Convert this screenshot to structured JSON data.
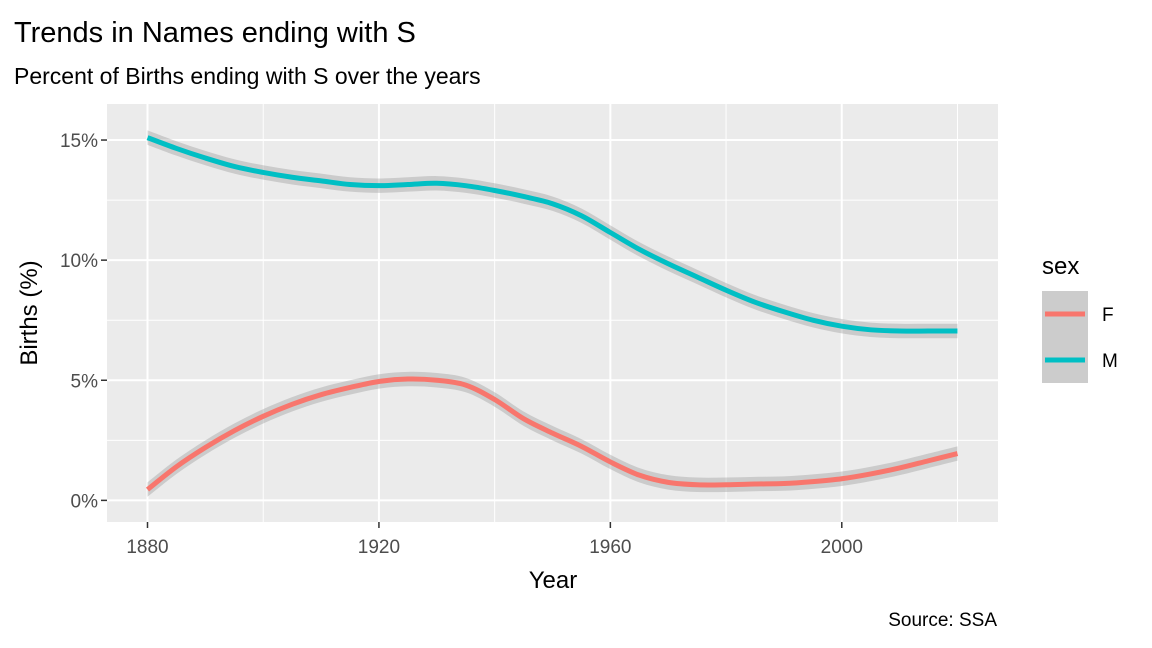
{
  "chart_data": {
    "type": "line",
    "title": "Trends in Names ending with S",
    "subtitle": "Percent of Births ending with S over the years",
    "xlabel": "Year",
    "ylabel": "Births (%)",
    "caption": "Source: SSA",
    "xlim": [
      1873,
      2027
    ],
    "ylim": [
      -0.009,
      0.165
    ],
    "x_ticks": [
      1880,
      1920,
      1960,
      2000
    ],
    "x_tick_labels": [
      "1880",
      "1920",
      "1960",
      "2000"
    ],
    "y_ticks": [
      0,
      0.05,
      0.1,
      0.15
    ],
    "y_tick_labels": [
      "0%",
      "5%",
      "10%",
      "15%"
    ],
    "grid": true,
    "panel_background": "#EBEBEB",
    "legend": {
      "title": "sex",
      "position": "right",
      "entries": [
        "F",
        "M"
      ]
    },
    "series": [
      {
        "name": "F",
        "color": "#F8766D",
        "x": [
          1880,
          1885,
          1890,
          1895,
          1900,
          1905,
          1910,
          1915,
          1920,
          1925,
          1930,
          1935,
          1940,
          1945,
          1950,
          1955,
          1960,
          1965,
          1970,
          1975,
          1980,
          1985,
          1990,
          1995,
          2000,
          2005,
          2010,
          2015,
          2020
        ],
        "y": [
          0.0045,
          0.014,
          0.022,
          0.029,
          0.035,
          0.04,
          0.044,
          0.047,
          0.0495,
          0.0505,
          0.05,
          0.048,
          0.042,
          0.034,
          0.028,
          0.0225,
          0.016,
          0.0105,
          0.0075,
          0.0065,
          0.0065,
          0.0068,
          0.007,
          0.0078,
          0.009,
          0.011,
          0.0135,
          0.0165,
          0.0195
        ],
        "band": 0.003
      },
      {
        "name": "M",
        "color": "#00BFC4",
        "x": [
          1880,
          1885,
          1890,
          1895,
          1900,
          1905,
          1910,
          1915,
          1920,
          1925,
          1930,
          1935,
          1940,
          1945,
          1950,
          1955,
          1960,
          1965,
          1970,
          1975,
          1980,
          1985,
          1990,
          1995,
          2000,
          2005,
          2010,
          2015,
          2020
        ],
        "y": [
          0.151,
          0.1465,
          0.1425,
          0.139,
          0.1365,
          0.1345,
          0.133,
          0.1315,
          0.131,
          0.1315,
          0.132,
          0.131,
          0.129,
          0.1265,
          0.1235,
          0.1185,
          0.1115,
          0.1045,
          0.0985,
          0.093,
          0.0875,
          0.0825,
          0.0785,
          0.075,
          0.0725,
          0.071,
          0.0705,
          0.0705,
          0.0705
        ],
        "band": 0.003
      }
    ]
  }
}
